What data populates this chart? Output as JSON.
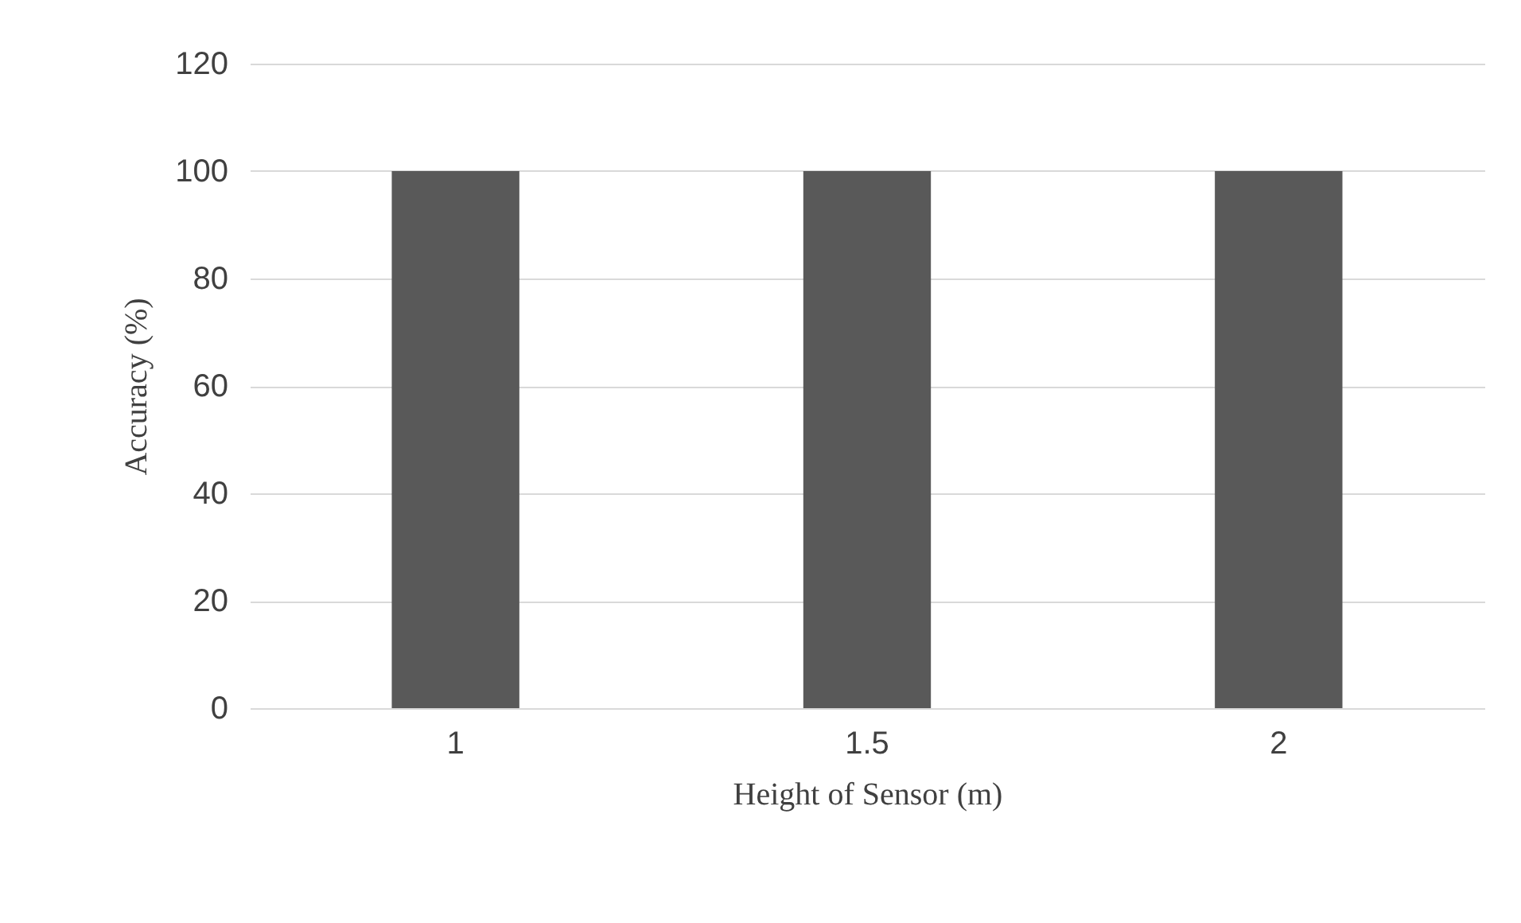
{
  "chart_data": {
    "type": "bar",
    "categories": [
      "1",
      "1.5",
      "2"
    ],
    "values": [
      100,
      100,
      100
    ],
    "color": "#595959",
    "xlabel": "Height of Sensor (m)",
    "ylabel": "Accuracy (%)",
    "ylim": [
      0,
      120
    ],
    "yticks": [
      0,
      20,
      40,
      60,
      80,
      100,
      120
    ],
    "grid": "y"
  }
}
